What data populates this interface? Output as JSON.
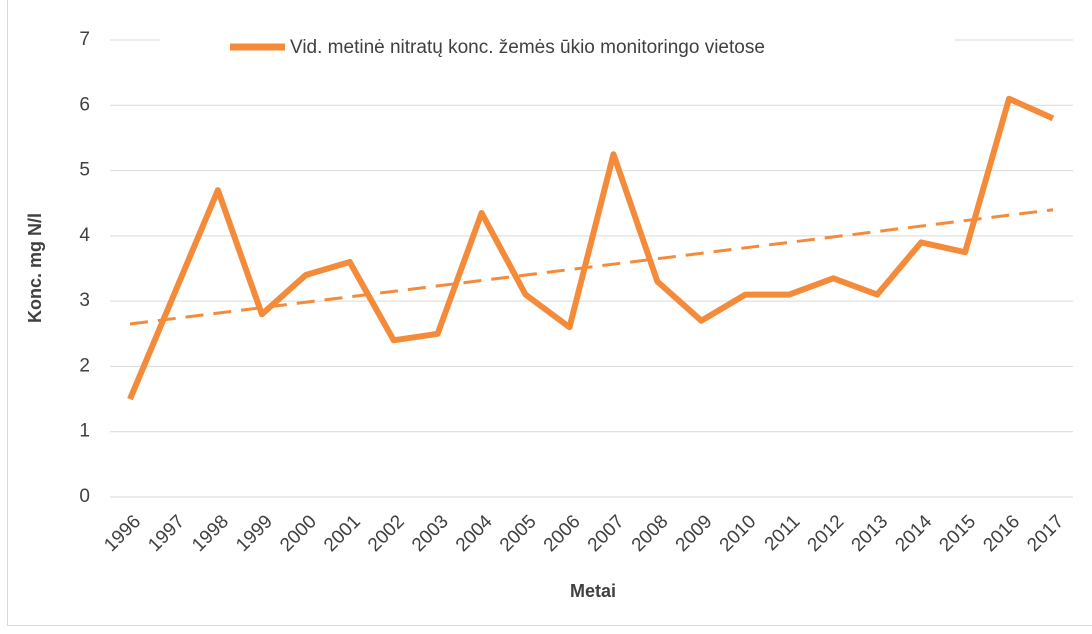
{
  "chart_data": {
    "type": "line",
    "x_label": "Metai",
    "y_label": "Konc. mg N/l",
    "categories": [
      "1996",
      "1997",
      "1998",
      "1999",
      "2000",
      "2001",
      "2002",
      "2003",
      "2004",
      "2005",
      "2006",
      "2007",
      "2008",
      "2009",
      "2010",
      "2011",
      "2012",
      "2013",
      "2014",
      "2015",
      "2016",
      "2017"
    ],
    "series": [
      {
        "name": "Vid. metinė nitratų konc. žemės ūkio monitoringo vietose",
        "color": "#f48b3a",
        "values": [
          1.5,
          3.1,
          4.7,
          2.8,
          3.4,
          3.6,
          2.4,
          2.5,
          4.35,
          3.1,
          2.6,
          5.25,
          3.3,
          2.7,
          3.1,
          3.1,
          3.35,
          3.1,
          3.9,
          3.75,
          6.1,
          5.8
        ]
      }
    ],
    "trendline": {
      "values": [
        2.65,
        4.4
      ],
      "color": "#f48b3a"
    },
    "ylim": [
      0,
      7
    ],
    "yticks": [
      0,
      1,
      2,
      3,
      4,
      5,
      6,
      7
    ],
    "grid": true,
    "legend": "top"
  }
}
